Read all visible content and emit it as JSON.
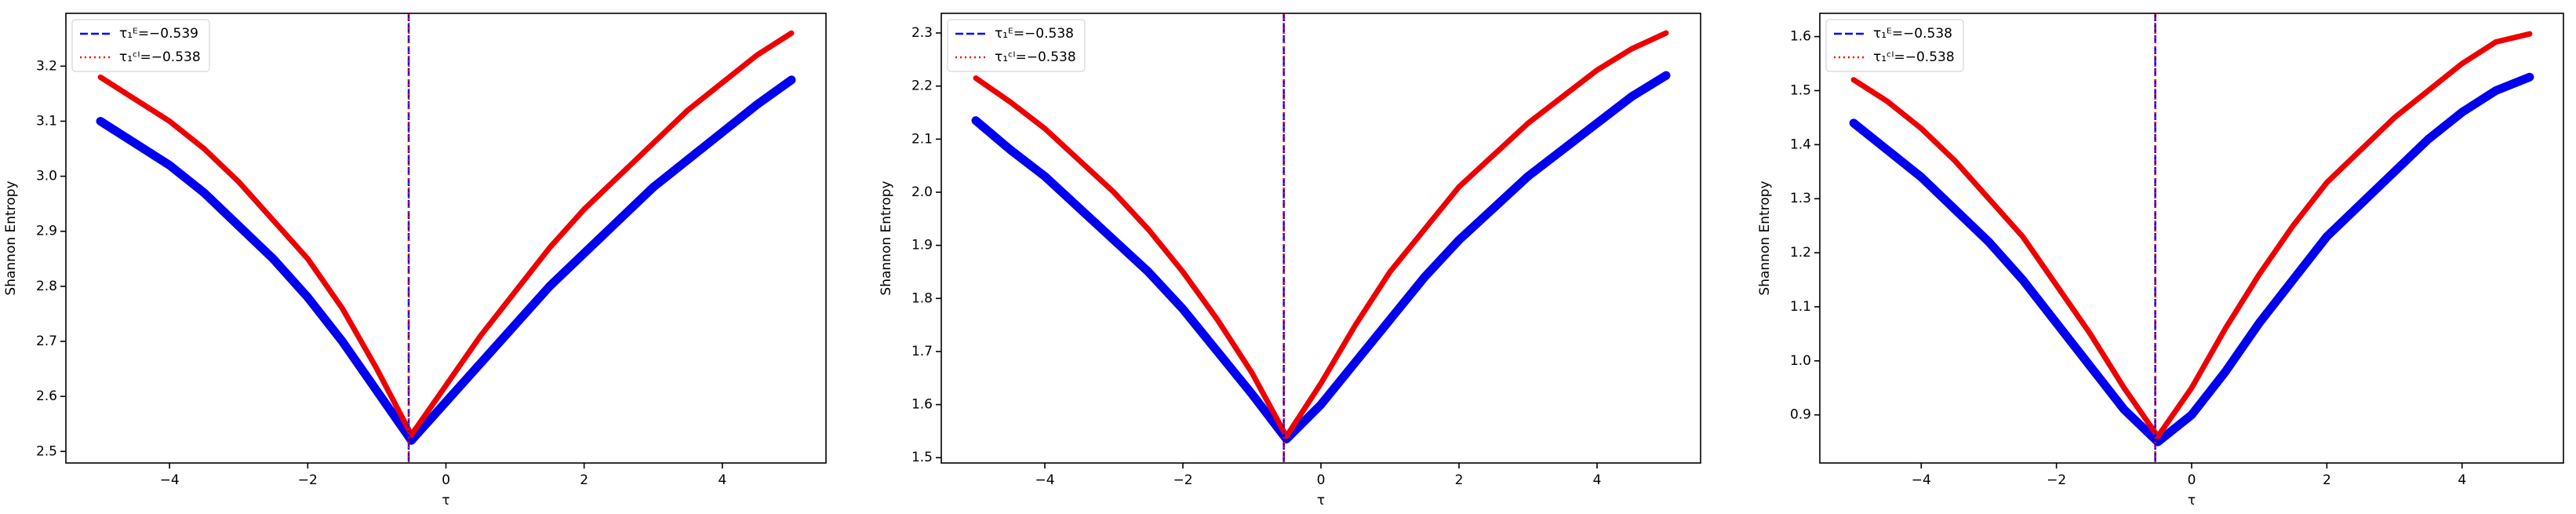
{
  "chart_data": [
    {
      "type": "line",
      "xlabel": "τ",
      "ylabel": "Shannon Entropy",
      "x": [
        -5,
        -4.5,
        -4,
        -3.5,
        -3,
        -2.5,
        -2,
        -1.5,
        -1,
        -0.5,
        0,
        0.5,
        1,
        1.5,
        2,
        2.5,
        3,
        3.5,
        4,
        4.5,
        5
      ],
      "series": [
        {
          "color": "#0000ee",
          "values": [
            3.1,
            3.06,
            3.02,
            2.97,
            2.91,
            2.85,
            2.78,
            2.7,
            2.61,
            2.52,
            2.59,
            2.66,
            2.73,
            2.8,
            2.86,
            2.92,
            2.98,
            3.03,
            3.08,
            3.13,
            3.175
          ]
        },
        {
          "color": "#ee0000",
          "values": [
            3.18,
            3.14,
            3.1,
            3.05,
            2.99,
            2.92,
            2.85,
            2.76,
            2.65,
            2.53,
            2.62,
            2.71,
            2.79,
            2.87,
            2.94,
            3.0,
            3.06,
            3.12,
            3.17,
            3.22,
            3.26
          ]
        }
      ],
      "vlines": [
        {
          "name": "τ₁ᴱ=−0.539",
          "value": -0.539,
          "color": "#0000ff",
          "style": "dashed"
        },
        {
          "name": "τ₁ᶜᴵ=−0.538",
          "value": -0.538,
          "color": "#ff0000",
          "style": "dotted"
        }
      ],
      "xlim": [
        -5.5,
        5.5
      ],
      "xticks": [
        {
          "value": -4,
          "label": "−4"
        },
        {
          "value": -2,
          "label": "−2"
        },
        0,
        2,
        4
      ],
      "ylim": [
        2.479,
        3.296
      ],
      "yticks": [
        2.5,
        2.6,
        2.7,
        2.8,
        2.9,
        {
          "value": 3,
          "label": "3.0"
        },
        3.1,
        3.2
      ],
      "legend": "upper-left"
    },
    {
      "type": "line",
      "xlabel": "τ",
      "ylabel": "Shannon Entropy",
      "x": [
        -5,
        -4.5,
        -4,
        -3.5,
        -3,
        -2.5,
        -2,
        -1.5,
        -1,
        -0.5,
        0,
        0.5,
        1,
        1.5,
        2,
        2.5,
        3,
        3.5,
        4,
        4.5,
        5
      ],
      "series": [
        {
          "color": "#0000ee",
          "values": [
            2.135,
            2.08,
            2.03,
            1.97,
            1.91,
            1.85,
            1.78,
            1.7,
            1.62,
            1.535,
            1.6,
            1.68,
            1.76,
            1.84,
            1.91,
            1.97,
            2.03,
            2.08,
            2.13,
            2.18,
            2.22
          ]
        },
        {
          "color": "#ee0000",
          "values": [
            2.215,
            2.17,
            2.12,
            2.06,
            2.0,
            1.93,
            1.85,
            1.76,
            1.66,
            1.54,
            1.64,
            1.75,
            1.85,
            1.93,
            2.01,
            2.07,
            2.13,
            2.18,
            2.23,
            2.27,
            2.3
          ]
        }
      ],
      "vlines": [
        {
          "name": "τ₁ᴱ=−0.538",
          "value": -0.538,
          "color": "#0000ff",
          "style": "dashed"
        },
        {
          "name": "τ₁ᶜᴵ=−0.538",
          "value": -0.538,
          "color": "#ff0000",
          "style": "dotted"
        }
      ],
      "xlim": [
        -5.5,
        5.5
      ],
      "xticks": [
        {
          "value": -4,
          "label": "−4"
        },
        {
          "value": -2,
          "label": "−2"
        },
        0,
        2,
        4
      ],
      "ylim": [
        1.49,
        2.337
      ],
      "yticks": [
        1.5,
        1.6,
        1.7,
        1.8,
        1.9,
        {
          "value": 2,
          "label": "2.0"
        },
        2.1,
        2.2,
        2.3
      ],
      "legend": "upper-left"
    },
    {
      "type": "line",
      "xlabel": "τ",
      "ylabel": "Shannon Entropy",
      "x": [
        -5,
        -4.5,
        -4,
        -3.5,
        -3,
        -2.5,
        -2,
        -1.5,
        -1,
        -0.5,
        0,
        0.5,
        1,
        1.5,
        2,
        2.5,
        3,
        3.5,
        4,
        4.5,
        5
      ],
      "series": [
        {
          "color": "#0000ee",
          "values": [
            1.44,
            1.39,
            1.34,
            1.28,
            1.22,
            1.15,
            1.07,
            0.99,
            0.91,
            0.85,
            0.9,
            0.98,
            1.07,
            1.15,
            1.23,
            1.29,
            1.35,
            1.41,
            1.46,
            1.5,
            1.525
          ]
        },
        {
          "color": "#ee0000",
          "values": [
            1.52,
            1.48,
            1.43,
            1.37,
            1.3,
            1.23,
            1.14,
            1.05,
            0.95,
            0.86,
            0.95,
            1.06,
            1.16,
            1.25,
            1.33,
            1.39,
            1.45,
            1.5,
            1.55,
            1.59,
            1.605
          ]
        }
      ],
      "vlines": [
        {
          "name": "τ₁ᴱ=−0.538",
          "value": -0.538,
          "color": "#0000ff",
          "style": "dashed"
        },
        {
          "name": "τ₁ᶜᴵ=−0.538",
          "value": -0.538,
          "color": "#ff0000",
          "style": "dotted"
        }
      ],
      "xlim": [
        -5.5,
        5.5
      ],
      "xticks": [
        {
          "value": -4,
          "label": "−4"
        },
        {
          "value": -2,
          "label": "−2"
        },
        0,
        2,
        4
      ],
      "ylim": [
        0.811,
        1.643
      ],
      "yticks": [
        0.9,
        {
          "value": 1,
          "label": "1.0"
        },
        1.1,
        1.2,
        1.3,
        1.4,
        1.5,
        1.6
      ],
      "legend": "upper-left"
    }
  ]
}
